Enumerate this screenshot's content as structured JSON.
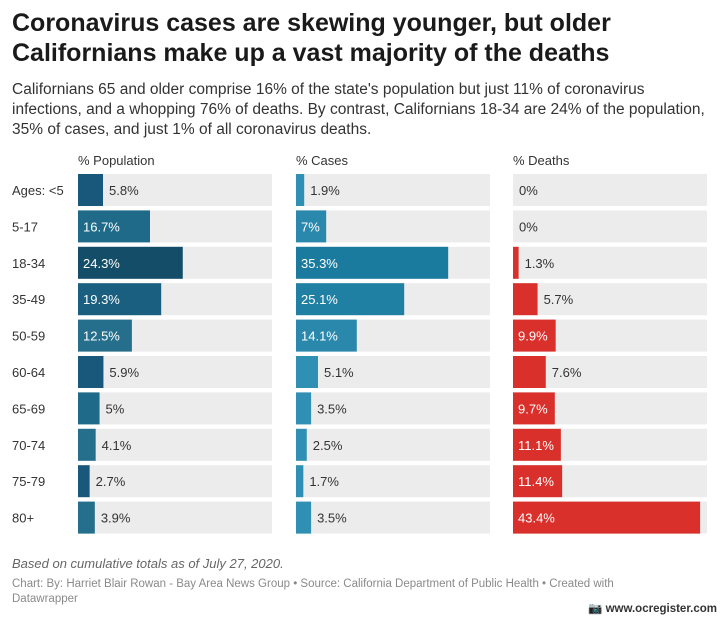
{
  "title": "Coronavirus cases are skewing younger, but older Californians make up a vast majority of the deaths",
  "description": "Californians 65 and older comprise 16% of the state's population but just 11% of coronavirus infections, and a whopping 76% of deaths. By contrast, Californians 18-34 are 24% of the population, 35% of cases, and just 1% of all coronavirus deaths.",
  "note": "Based on cumulative totals as of July 27, 2020.",
  "credit": "Chart: By: Harriet Blair Rowan - Bay Area News Group • Source: California Department of Public Health • Created with Datawrapper",
  "watermark": "www.ocregister.com",
  "chart_data": {
    "type": "bar",
    "orientation": "horizontal",
    "layout": "small-multiples",
    "categories": [
      "Ages: <5",
      "5-17",
      "18-34",
      "35-49",
      "50-59",
      "60-64",
      "65-69",
      "70-74",
      "75-79",
      "80+"
    ],
    "series": [
      {
        "name": "% Population",
        "values": [
          5.8,
          16.7,
          24.3,
          19.3,
          12.5,
          5.9,
          5,
          4.1,
          2.7,
          3.9
        ],
        "labels": [
          "5.8%",
          "16.7%",
          "24.3%",
          "19.3%",
          "12.5%",
          "5.9%",
          "5%",
          "4.1%",
          "2.7%",
          "3.9%"
        ],
        "colors": [
          "#19587a",
          "#1e6a88",
          "#134d68",
          "#1b5f80",
          "#256f8d",
          "#19587a",
          "#1e6a88",
          "#256f8d",
          "#19587a",
          "#256f8d"
        ]
      },
      {
        "name": "% Cases",
        "values": [
          1.9,
          7,
          35.3,
          25.1,
          14.1,
          5.1,
          3.5,
          2.5,
          1.7,
          3.5
        ],
        "labels": [
          "1.9%",
          "7%",
          "35.3%",
          "25.1%",
          "14.1%",
          "5.1%",
          "3.5%",
          "2.5%",
          "1.7%",
          "3.5%"
        ],
        "colors": [
          "#2f90b4",
          "#2a88ad",
          "#1b7b9f",
          "#1f80a4",
          "#2a88ad",
          "#2f90b4",
          "#2f90b4",
          "#2f90b4",
          "#2f90b4",
          "#2f90b4"
        ]
      },
      {
        "name": "% Deaths",
        "values": [
          0,
          0,
          1.3,
          5.7,
          9.9,
          7.6,
          9.7,
          11.1,
          11.4,
          43.4
        ],
        "labels": [
          "0%",
          "0%",
          "1.3%",
          "5.7%",
          "9.9%",
          "7.6%",
          "9.7%",
          "11.1%",
          "11.4%",
          "43.4%"
        ],
        "colors": [
          "#d9302b",
          "#d9302b",
          "#d9302b",
          "#d9302b",
          "#d9302b",
          "#d9302b",
          "#d9302b",
          "#d9302b",
          "#d9302b",
          "#d9302b"
        ]
      }
    ],
    "xlim": [
      0,
      45
    ],
    "background_track_color": "#ececec",
    "legend": "none",
    "grid": false
  }
}
